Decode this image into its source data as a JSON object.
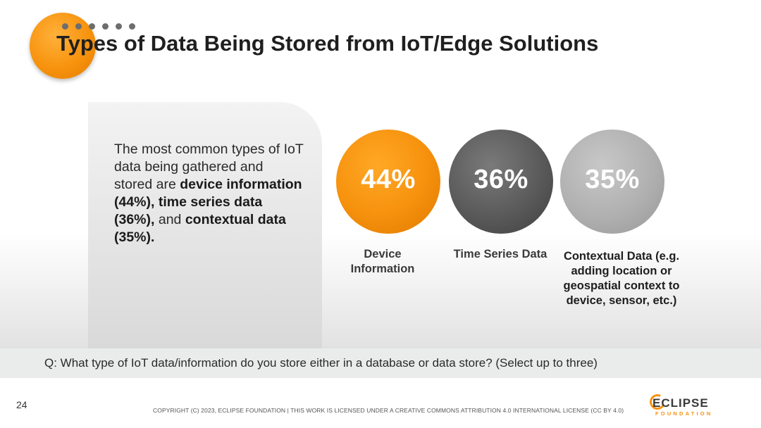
{
  "slide": {
    "title": "Types of Data Being Stored from IoT/Edge Solutions",
    "summary_parts": [
      "The most common types of IoT data being gathered and stored are ",
      "device information (44%), time series data (36%),",
      " and ",
      "contextual data (35%)."
    ],
    "stats": [
      {
        "value": "44%",
        "label": "Device Information",
        "color": "#f7930e"
      },
      {
        "value": "36%",
        "label": "Time Series Data",
        "color": "#5a5a5a"
      },
      {
        "value": "35%",
        "label": "Contextual Data (e.g. adding location or geospatial context to device, sensor, etc.)",
        "color": "#b0b0b0"
      }
    ],
    "question": "Q: What type of IoT data/information do you store either in a database or data store? (Select up to three)"
  },
  "footer": {
    "page_number": "24",
    "copyright": "COPYRIGHT (C) 2023, ECLIPSE FOUNDATION | THIS WORK IS LICENSED UNDER A CREATIVE COMMONS ATTRIBUTION 4.0 INTERNATIONAL LICENSE (CC BY 4.0)",
    "logo_word": "ECLIPSE",
    "logo_sub": "FOUNDATION"
  },
  "colors": {
    "accent": "#f7930e",
    "dark": "#5a5a5a",
    "light": "#b0b0b0"
  }
}
